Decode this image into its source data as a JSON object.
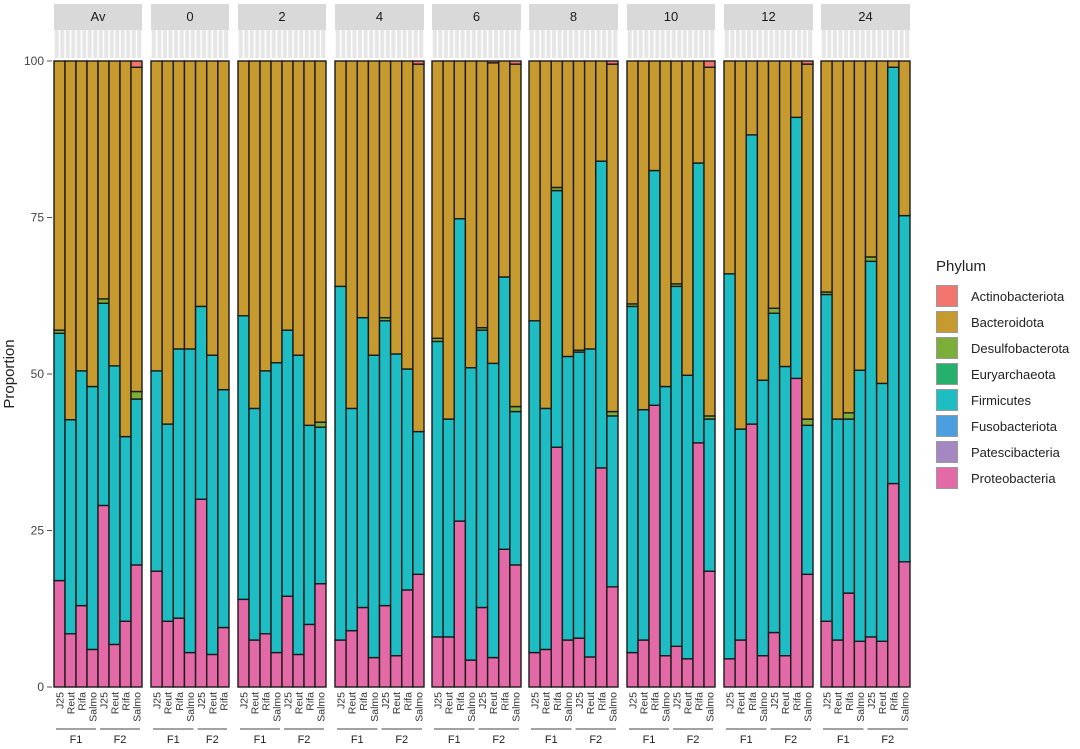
{
  "chart_data": {
    "type": "bar",
    "stacked": true,
    "ylabel": "Proportion",
    "ylim": [
      0,
      100
    ],
    "yticks": [
      0,
      25,
      50,
      75,
      100
    ],
    "legend": {
      "title": "Phylum",
      "position": "right"
    },
    "phyla": [
      {
        "name": "Actinobacteriota",
        "color": "#F2766D"
      },
      {
        "name": "Bacteroidota",
        "color": "#C79A30"
      },
      {
        "name": "Desulfobacterota",
        "color": "#7CAE3A"
      },
      {
        "name": "Euryarchaeota",
        "color": "#25B06E"
      },
      {
        "name": "Firmicutes",
        "color": "#1DBDC3"
      },
      {
        "name": "Fusobacteriota",
        "color": "#4A9FE0"
      },
      {
        "name": "Patescibacteria",
        "color": "#A587C2"
      },
      {
        "name": "Proteobacteria",
        "color": "#E46AA7"
      }
    ],
    "stack_order_bottom_to_top": [
      "Proteobacteria",
      "Patescibacteria",
      "Fusobacteriota",
      "Firmicutes",
      "Euryarchaeota",
      "Desulfobacterota",
      "Bacteroidota",
      "Actinobacteriota"
    ],
    "facets": [
      {
        "label": "Av",
        "bars": [
          {
            "label": "J25",
            "group": "F1",
            "proteo": 17,
            "firm": 39.5,
            "desulfo": 0.5,
            "actino": 0
          },
          {
            "label": "Reut",
            "group": "F1",
            "proteo": 8.5,
            "firm": 34.2,
            "desulfo": 0,
            "actino": 0
          },
          {
            "label": "Rifa",
            "group": "F1",
            "proteo": 13,
            "firm": 37.5,
            "desulfo": 0,
            "actino": 0
          },
          {
            "label": "Salmo",
            "group": "F1",
            "proteo": 6,
            "firm": 42,
            "desulfo": 0,
            "actino": 0
          },
          {
            "label": "J25",
            "group": "F2",
            "proteo": 29,
            "firm": 32.3,
            "desulfo": 0.7,
            "actino": 0
          },
          {
            "label": "Reut",
            "group": "F2",
            "proteo": 6.8,
            "firm": 44.5,
            "desulfo": 0,
            "actino": 0
          },
          {
            "label": "Rifa",
            "group": "F2",
            "proteo": 10.5,
            "firm": 29.5,
            "desulfo": 0,
            "actino": 0
          },
          {
            "label": "Salmo",
            "group": "F2",
            "proteo": 19.5,
            "firm": 26.5,
            "desulfo": 1.2,
            "actino": 1
          }
        ]
      },
      {
        "label": "0",
        "bars": [
          {
            "label": "J25",
            "group": "F1",
            "proteo": 18.5,
            "firm": 32,
            "desulfo": 0,
            "actino": 0
          },
          {
            "label": "Reut",
            "group": "F1",
            "proteo": 10.5,
            "firm": 31.5,
            "desulfo": 0,
            "actino": 0
          },
          {
            "label": "Rifa",
            "group": "F1",
            "proteo": 11,
            "firm": 43,
            "desulfo": 0,
            "actino": 0
          },
          {
            "label": "Salmo",
            "group": "F1",
            "proteo": 5.5,
            "firm": 48.5,
            "desulfo": 0,
            "actino": 0
          },
          {
            "label": "J25",
            "group": "F2",
            "proteo": 30,
            "firm": 30.8,
            "desulfo": 0,
            "actino": 0
          },
          {
            "label": "Reut",
            "group": "F2",
            "proteo": 5.2,
            "firm": 47.8,
            "desulfo": 0,
            "actino": 0
          },
          {
            "label": "Rifa",
            "group": "F2",
            "proteo": 9.5,
            "firm": 38,
            "desulfo": 0,
            "actino": 0
          }
        ]
      },
      {
        "label": "2",
        "bars": [
          {
            "label": "J25",
            "group": "F1",
            "proteo": 14,
            "firm": 45.3,
            "desulfo": 0,
            "actino": 0
          },
          {
            "label": "Reut",
            "group": "F1",
            "proteo": 7.5,
            "firm": 37,
            "desulfo": 0,
            "actino": 0
          },
          {
            "label": "Rifa",
            "group": "F1",
            "proteo": 8.5,
            "firm": 42,
            "desulfo": 0,
            "actino": 0
          },
          {
            "label": "Salmo",
            "group": "F1",
            "proteo": 5.5,
            "firm": 46.3,
            "desulfo": 0,
            "actino": 0
          },
          {
            "label": "J25",
            "group": "F2",
            "proteo": 14.5,
            "firm": 42.5,
            "desulfo": 0,
            "actino": 0
          },
          {
            "label": "Reut",
            "group": "F2",
            "proteo": 5.2,
            "firm": 47.8,
            "desulfo": 0,
            "actino": 0
          },
          {
            "label": "Rifa",
            "group": "F2",
            "proteo": 10,
            "firm": 31.8,
            "desulfo": 0,
            "actino": 0
          },
          {
            "label": "Salmo",
            "group": "F2",
            "proteo": 16.5,
            "firm": 25,
            "desulfo": 0.8,
            "actino": 0
          }
        ]
      },
      {
        "label": "4",
        "bars": [
          {
            "label": "J25",
            "group": "F1",
            "proteo": 7.5,
            "firm": 56.5,
            "desulfo": 0,
            "actino": 0
          },
          {
            "label": "Reut",
            "group": "F1",
            "proteo": 9,
            "firm": 35.5,
            "desulfo": 0,
            "actino": 0
          },
          {
            "label": "Rifa",
            "group": "F1",
            "proteo": 12.7,
            "firm": 46.3,
            "desulfo": 0,
            "actino": 0
          },
          {
            "label": "Salmo",
            "group": "F1",
            "proteo": 4.7,
            "firm": 48.3,
            "desulfo": 0,
            "actino": 0
          },
          {
            "label": "J25",
            "group": "F2",
            "proteo": 13,
            "firm": 45.5,
            "desulfo": 0.5,
            "actino": 0
          },
          {
            "label": "Reut",
            "group": "F2",
            "proteo": 5,
            "firm": 48.2,
            "desulfo": 0,
            "actino": 0
          },
          {
            "label": "Rifa",
            "group": "F2",
            "proteo": 15.5,
            "firm": 35.3,
            "desulfo": 0,
            "actino": 0
          },
          {
            "label": "Salmo",
            "group": "F2",
            "proteo": 18,
            "firm": 22.8,
            "desulfo": 0,
            "actino": 0.5
          }
        ]
      },
      {
        "label": "6",
        "bars": [
          {
            "label": "J25",
            "group": "F1",
            "proteo": 8,
            "firm": 47.2,
            "desulfo": 0.5,
            "actino": 0
          },
          {
            "label": "Reut",
            "group": "F1",
            "proteo": 8,
            "firm": 34.8,
            "desulfo": 0,
            "actino": 0
          },
          {
            "label": "Rifa",
            "group": "F1",
            "proteo": 26.5,
            "firm": 48.3,
            "desulfo": 0,
            "actino": 0
          },
          {
            "label": "Salmo",
            "group": "F1",
            "proteo": 4.3,
            "firm": 46.7,
            "desulfo": 0,
            "actino": 0
          },
          {
            "label": "J25",
            "group": "F2",
            "proteo": 12.7,
            "firm": 44.3,
            "desulfo": 0.4,
            "actino": 0
          },
          {
            "label": "Reut",
            "group": "F2",
            "proteo": 4.7,
            "firm": 47,
            "desulfo": 0,
            "actino": 0.3
          },
          {
            "label": "Rifa",
            "group": "F2",
            "proteo": 22,
            "firm": 43.5,
            "desulfo": 0,
            "actino": 0
          },
          {
            "label": "Salmo",
            "group": "F2",
            "proteo": 19.5,
            "firm": 24.5,
            "desulfo": 0.8,
            "actino": 0.5
          }
        ]
      },
      {
        "label": "8",
        "bars": [
          {
            "label": "J25",
            "group": "F1",
            "proteo": 5.5,
            "firm": 53,
            "desulfo": 0,
            "actino": 0
          },
          {
            "label": "Reut",
            "group": "F1",
            "proteo": 6,
            "firm": 38.5,
            "desulfo": 0,
            "actino": 0
          },
          {
            "label": "Rifa",
            "group": "F1",
            "proteo": 38.3,
            "firm": 41,
            "desulfo": 0.5,
            "actino": 0
          },
          {
            "label": "Salmo",
            "group": "F1",
            "proteo": 7.5,
            "firm": 45.3,
            "desulfo": 0,
            "actino": 0
          },
          {
            "label": "J25",
            "group": "F2",
            "proteo": 7.8,
            "firm": 45.7,
            "desulfo": 0.3,
            "actino": 0
          },
          {
            "label": "Reut",
            "group": "F2",
            "proteo": 4.8,
            "firm": 49.2,
            "desulfo": 0,
            "actino": 0
          },
          {
            "label": "Rifa",
            "group": "F2",
            "proteo": 35,
            "firm": 49,
            "desulfo": 0,
            "actino": 0
          },
          {
            "label": "Salmo",
            "group": "F2",
            "proteo": 16,
            "firm": 27.3,
            "desulfo": 0.7,
            "actino": 0.5
          }
        ]
      },
      {
        "label": "10",
        "bars": [
          {
            "label": "J25",
            "group": "F1",
            "proteo": 5.5,
            "firm": 55.3,
            "desulfo": 0.4,
            "actino": 0
          },
          {
            "label": "Reut",
            "group": "F1",
            "proteo": 7.5,
            "firm": 36.8,
            "desulfo": 0,
            "actino": 0
          },
          {
            "label": "Rifa",
            "group": "F1",
            "proteo": 45,
            "firm": 37.5,
            "desulfo": 0,
            "actino": 0
          },
          {
            "label": "Salmo",
            "group": "F1",
            "proteo": 5,
            "firm": 43,
            "desulfo": 0,
            "actino": 0
          },
          {
            "label": "J25",
            "group": "F2",
            "proteo": 6.5,
            "firm": 57.5,
            "desulfo": 0.4,
            "actino": 0
          },
          {
            "label": "Reut",
            "group": "F2",
            "proteo": 4.5,
            "firm": 45.3,
            "desulfo": 0,
            "actino": 0
          },
          {
            "label": "Rifa",
            "group": "F2",
            "proteo": 39,
            "firm": 44.7,
            "desulfo": 0,
            "actino": 0
          },
          {
            "label": "Salmo",
            "group": "F2",
            "proteo": 18.5,
            "firm": 24.3,
            "desulfo": 0.5,
            "actino": 1
          }
        ]
      },
      {
        "label": "12",
        "bars": [
          {
            "label": "J25",
            "group": "F1",
            "proteo": 4.5,
            "firm": 61.5,
            "desulfo": 0,
            "actino": 0
          },
          {
            "label": "Reut",
            "group": "F1",
            "proteo": 7.5,
            "firm": 33.7,
            "desulfo": 0,
            "actino": 0
          },
          {
            "label": "Rifa",
            "group": "F1",
            "proteo": 42,
            "firm": 46.2,
            "desulfo": 0,
            "actino": 0
          },
          {
            "label": "Salmo",
            "group": "F1",
            "proteo": 5,
            "firm": 44,
            "desulfo": 0,
            "actino": 0
          },
          {
            "label": "J25",
            "group": "F2",
            "proteo": 8.7,
            "firm": 51,
            "desulfo": 0.8,
            "actino": 0
          },
          {
            "label": "Reut",
            "group": "F2",
            "proteo": 5,
            "firm": 46.2,
            "desulfo": 0,
            "actino": 0
          },
          {
            "label": "Rifa",
            "group": "F2",
            "proteo": 49.3,
            "firm": 41.7,
            "desulfo": 0,
            "actino": 0
          },
          {
            "label": "Salmo",
            "group": "F2",
            "proteo": 18,
            "firm": 23.8,
            "desulfo": 1,
            "actino": 0.5
          }
        ]
      },
      {
        "label": "24",
        "bars": [
          {
            "label": "J25",
            "group": "F1",
            "proteo": 10.5,
            "firm": 52.2,
            "desulfo": 0.4,
            "actino": 0
          },
          {
            "label": "Reut",
            "group": "F1",
            "proteo": 7.5,
            "firm": 35.3,
            "desulfo": 0,
            "actino": 0
          },
          {
            "label": "Rifa",
            "group": "F1",
            "proteo": 15,
            "firm": 27.8,
            "desulfo": 1,
            "actino": 0
          },
          {
            "label": "Salmo",
            "group": "F1",
            "proteo": 7.3,
            "firm": 43.3,
            "desulfo": 0,
            "actino": 0
          },
          {
            "label": "J25",
            "group": "F2",
            "proteo": 8,
            "firm": 60,
            "desulfo": 0.7,
            "actino": 0
          },
          {
            "label": "Reut",
            "group": "F2",
            "proteo": 7.3,
            "firm": 41.2,
            "desulfo": 0,
            "actino": 0
          },
          {
            "label": "Rifa",
            "group": "F2",
            "proteo": 32.5,
            "firm": 66.5,
            "desulfo": 0,
            "actino": 0
          },
          {
            "label": "Salmo",
            "group": "F2",
            "proteo": 20,
            "firm": 55.3,
            "desulfo": 0,
            "actino": 0
          }
        ]
      }
    ]
  }
}
